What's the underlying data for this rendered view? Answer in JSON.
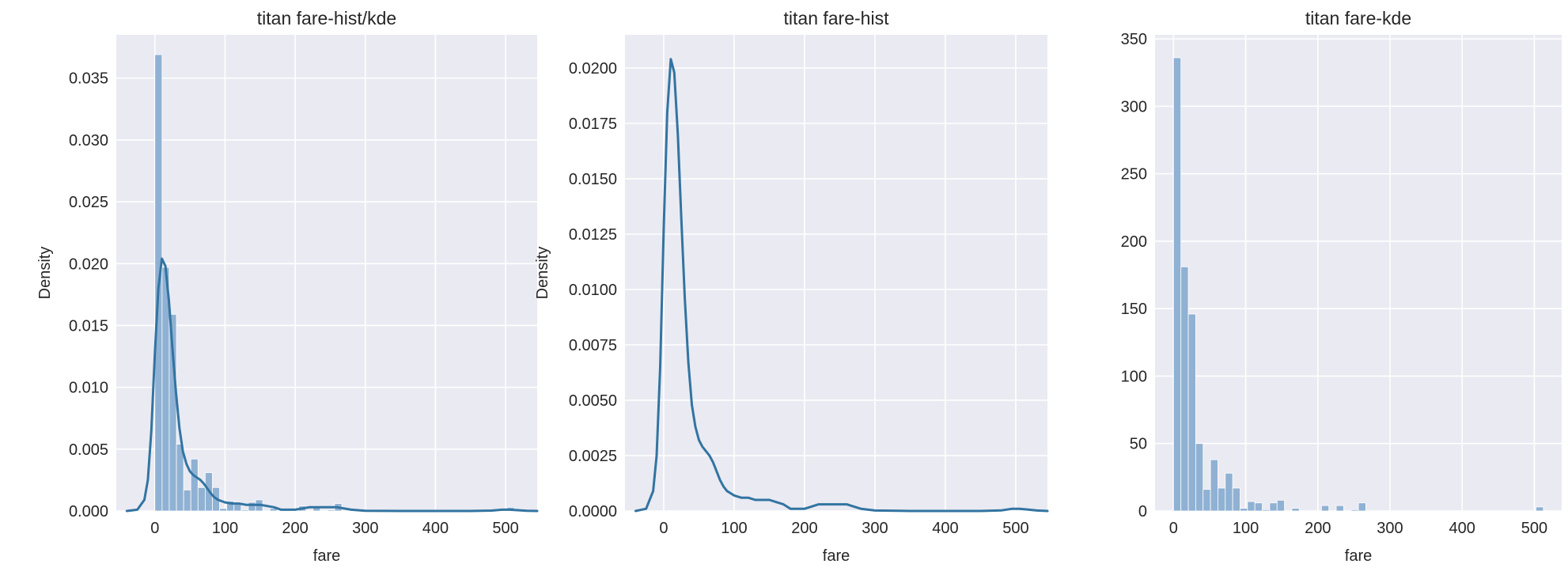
{
  "chart_data": [
    {
      "type": "bar",
      "title": "titan fare-hist/kde",
      "xlabel": "fare",
      "ylabel": "Density",
      "xlim": [
        -55,
        545
      ],
      "ylim": [
        0,
        0.0385
      ],
      "xticks": [
        "0",
        "100",
        "200",
        "300",
        "400",
        "500"
      ],
      "yticks": [
        "0.000",
        "0.005",
        "0.010",
        "0.015",
        "0.020",
        "0.025",
        "0.030",
        "0.035"
      ],
      "grid": true,
      "colors": {
        "bar": "#8fb1d3",
        "line": "#3274a1",
        "background": "#eaeaf2",
        "grid": "#ffffff"
      },
      "histogram": {
        "bin_width": 10.25,
        "bin_start": 0,
        "values": [
          0.0369,
          0.0197,
          0.0159,
          0.0054,
          0.0017,
          0.0042,
          0.0019,
          0.0031,
          0.0019,
          0.0002,
          0.0008,
          0.0007,
          0.0001,
          0.0007,
          0.0009,
          0,
          0.0002,
          0,
          0,
          0,
          0.0004,
          0,
          0.0004,
          0,
          0.0001,
          0.0006,
          0,
          0,
          0,
          0,
          0,
          0,
          0,
          0,
          0,
          0,
          0,
          0,
          0,
          0,
          0,
          0,
          0,
          0,
          0,
          0,
          0,
          0,
          0,
          0.0003
        ]
      },
      "kde": {
        "x": [
          -40,
          -25,
          -15,
          -10,
          -5,
          0,
          5,
          10,
          15,
          20,
          25,
          30,
          35,
          40,
          45,
          50,
          55,
          60,
          65,
          70,
          75,
          80,
          85,
          90,
          100,
          110,
          120,
          130,
          140,
          150,
          160,
          170,
          180,
          190,
          200,
          210,
          220,
          230,
          240,
          250,
          260,
          270,
          280,
          300,
          350,
          400,
          450,
          480,
          495,
          505,
          515,
          530,
          545
        ],
        "y": [
          0,
          0.0001,
          0.0009,
          0.0025,
          0.0065,
          0.0128,
          0.018,
          0.0204,
          0.0198,
          0.017,
          0.0132,
          0.0096,
          0.0067,
          0.0048,
          0.0038,
          0.0032,
          0.0029,
          0.0027,
          0.0025,
          0.0022,
          0.0018,
          0.0014,
          0.0011,
          0.0009,
          0.0007,
          0.0006,
          0.0006,
          0.0005,
          0.0005,
          0.0005,
          0.0004,
          0.0003,
          0.0001,
          0.0001,
          0.0001,
          0.0002,
          0.0003,
          0.0003,
          0.0003,
          0.0003,
          0.0003,
          0.0002,
          0.0001,
          2e-05,
          0,
          0,
          0,
          3e-05,
          0.0001,
          0.0001,
          7e-05,
          2e-05,
          0
        ]
      }
    },
    {
      "type": "line",
      "title": "titan fare-hist",
      "xlabel": "fare",
      "ylabel": "Density",
      "xlim": [
        -55,
        545
      ],
      "ylim": [
        0,
        0.0215
      ],
      "xticks": [
        "0",
        "100",
        "200",
        "300",
        "400",
        "500"
      ],
      "yticks": [
        "0.0000",
        "0.0025",
        "0.0050",
        "0.0075",
        "0.0100",
        "0.0125",
        "0.0150",
        "0.0175",
        "0.0200"
      ],
      "grid": true,
      "colors": {
        "line": "#3274a1",
        "background": "#eaeaf2",
        "grid": "#ffffff"
      },
      "kde": {
        "x": [
          -40,
          -25,
          -15,
          -10,
          -5,
          0,
          5,
          10,
          15,
          20,
          25,
          30,
          35,
          40,
          45,
          50,
          55,
          60,
          65,
          70,
          75,
          80,
          85,
          90,
          100,
          110,
          120,
          130,
          140,
          150,
          160,
          170,
          180,
          190,
          200,
          210,
          220,
          230,
          240,
          250,
          260,
          270,
          280,
          300,
          350,
          400,
          450,
          480,
          495,
          505,
          515,
          530,
          545
        ],
        "y": [
          0,
          0.0001,
          0.0009,
          0.0025,
          0.0065,
          0.0128,
          0.018,
          0.0204,
          0.0198,
          0.017,
          0.0132,
          0.0096,
          0.0067,
          0.0048,
          0.0038,
          0.0032,
          0.0029,
          0.0027,
          0.0025,
          0.0022,
          0.0018,
          0.0014,
          0.0011,
          0.0009,
          0.0007,
          0.0006,
          0.0006,
          0.0005,
          0.0005,
          0.0005,
          0.0004,
          0.0003,
          0.0001,
          0.0001,
          0.0001,
          0.0002,
          0.0003,
          0.0003,
          0.0003,
          0.0003,
          0.0003,
          0.0002,
          0.0001,
          2e-05,
          0,
          0,
          0,
          3e-05,
          0.0001,
          0.0001,
          7e-05,
          2e-05,
          0
        ]
      }
    },
    {
      "type": "bar",
      "title": "titan fare-kde",
      "xlabel": "fare",
      "ylabel": "",
      "xlim": [
        -25.6,
        537.9
      ],
      "ylim": [
        0,
        353
      ],
      "xticks": [
        "0",
        "100",
        "200",
        "300",
        "400",
        "500"
      ],
      "yticks": [
        "0",
        "50",
        "100",
        "150",
        "200",
        "250",
        "300",
        "350"
      ],
      "grid": true,
      "colors": {
        "bar": "#8fb1d3",
        "background": "#eaeaf2",
        "grid": "#ffffff"
      },
      "histogram": {
        "bin_width": 10.25,
        "bin_start": 0,
        "values": [
          336,
          181,
          146,
          50,
          16,
          38,
          17,
          28,
          17,
          2,
          7,
          6,
          1,
          6,
          8,
          0,
          2,
          0,
          0,
          0,
          4,
          0,
          4,
          0,
          1,
          6,
          0,
          0,
          0,
          0,
          0,
          0,
          0,
          0,
          0,
          0,
          0,
          0,
          0,
          0,
          0,
          0,
          0,
          0,
          0,
          0,
          0,
          0,
          0,
          3
        ]
      }
    }
  ]
}
